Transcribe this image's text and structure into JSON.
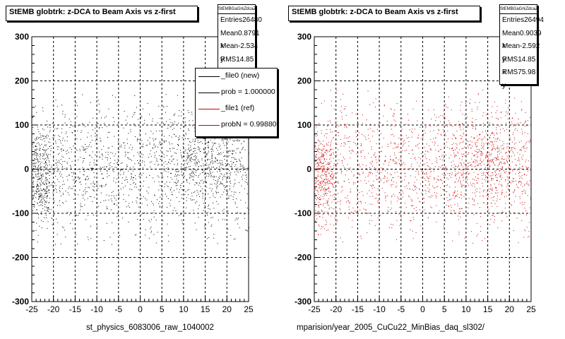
{
  "colors": {
    "new": "#000000",
    "ref": "#cc0000",
    "frame": "#000000"
  },
  "chart_data": [
    {
      "type": "scatter",
      "title": "StEMB globtrk: z-DCA to Beam Axis vs z-first",
      "xlabel": "st_physics_6083006_raw_1040002",
      "ylabel": "",
      "xlim": [
        -25,
        25
      ],
      "ylim": [
        -300,
        300
      ],
      "x_ticks": [
        "-25",
        "-20",
        "-15",
        "-10",
        "-5",
        "0",
        "5",
        "10",
        "15",
        "20",
        "25"
      ],
      "y_ticks": [
        "300",
        "200",
        "100",
        "0",
        "-100",
        "-200",
        "-300"
      ],
      "grid": true,
      "series": [
        {
          "color": "#000000"
        }
      ],
      "stats": {
        "name": "StEMBGaGrkZdcaZf",
        "rows": [
          {
            "label": "Entries",
            "value": "26480"
          },
          {
            "label": "Mean x",
            "value": "0.8791"
          },
          {
            "label": "Mean y",
            "value": "-2.534"
          },
          {
            "label": "RMS x",
            "value": "14.85"
          }
        ]
      },
      "legend": [
        {
          "label": "_file0 (new)",
          "color": "#000000"
        },
        {
          "label": "prob = 1.000000",
          "color": "#000000"
        },
        {
          "label": "_file1 (ref)",
          "color": "#cc0000"
        },
        {
          "label": "probN = 0.998800",
          "color": "#cc0000"
        }
      ]
    },
    {
      "type": "scatter",
      "title": "StEMB globtrk: z-DCA to Beam Axis vs z-first",
      "xlabel": "mparision/year_2005_CuCu22_MinBias_daq_sl302/",
      "ylabel": "",
      "xlim": [
        -25,
        25
      ],
      "ylim": [
        -300,
        300
      ],
      "x_ticks": [
        "-25",
        "-20",
        "-15",
        "-10",
        "-5",
        "0",
        "5",
        "10",
        "15",
        "20",
        "25"
      ],
      "y_ticks": [
        "300",
        "200",
        "100",
        "0",
        "-100",
        "-200",
        "-300"
      ],
      "grid": true,
      "series": [
        {
          "color": "#cc0000"
        }
      ],
      "stats": {
        "name": "StEMBGaGrkZdcaZf",
        "rows": [
          {
            "label": "Entries",
            "value": "26494"
          },
          {
            "label": "Mean x",
            "value": "0.9039"
          },
          {
            "label": "Mean y",
            "value": "-2.592"
          },
          {
            "label": "RMS x",
            "value": "14.85"
          },
          {
            "label": "RMS y",
            "value": "75.98"
          }
        ]
      }
    }
  ]
}
